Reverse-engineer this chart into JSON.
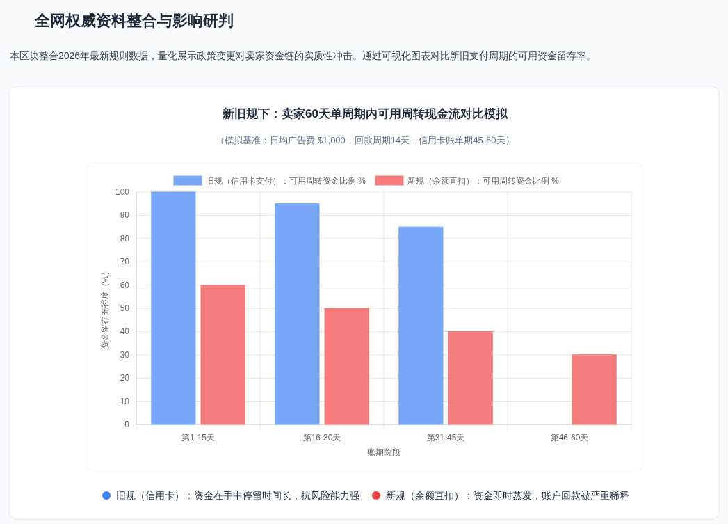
{
  "chart_data": {
    "type": "bar",
    "title": "新旧规下：卖家60天单周期内可用周转现金流对比模拟",
    "subtitle": "（模拟基准：日均广告费 $1,000，回款周期14天，信用卡账单期45-60天）",
    "annotations": [
      "全网权威资料整合与影响研判",
      "本区块整合2026年最新规则数据，量化展示政策变更对卖家资金链的实质性冲击。通过可视化图表对比新旧支付周期的可用资金留存率。",
      "旧规（信用卡）：资金在手中停留时间长，抗风险能力强",
      "新规（余额直扣）：资金即时蒸发，账户回款被严重稀释"
    ],
    "xlabel": "账期阶段",
    "ylabel": "资金留存充裕度（%）",
    "categories": [
      "第1-15天",
      "第16-30天",
      "第31-45天",
      "第46-60天"
    ],
    "series": [
      {
        "name": "旧规（信用卡支付）：可用周转资金比例 %",
        "color": "#77a6f7",
        "values": [
          100,
          95,
          85,
          0
        ]
      },
      {
        "name": "新规（余额直扣）：可用周转资金比例 %",
        "color": "#f47c7c",
        "values": [
          60,
          50,
          40,
          30
        ]
      }
    ],
    "ylim": [
      0,
      100
    ],
    "yticks": [
      0,
      10,
      20,
      30,
      40,
      50,
      60,
      70,
      80,
      90,
      100
    ],
    "grid": true,
    "legend": "top"
  }
}
